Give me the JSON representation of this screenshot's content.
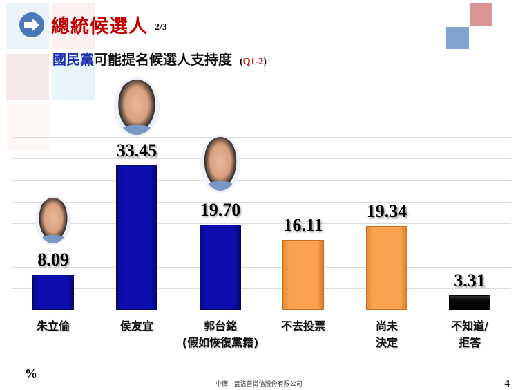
{
  "header": {
    "title": "總統候選人",
    "page_fraction": "2/3",
    "subtitle_party": "國民黨",
    "subtitle_rest": "可能提名候選人支持度",
    "question_open": "(",
    "question_code": "Q1-2",
    "question_close": ")"
  },
  "chart_data": {
    "type": "bar",
    "title": "國民黨可能提名候選人支持度 (Q1-2)",
    "xlabel": "",
    "ylabel": "%",
    "ylim": [
      0,
      40
    ],
    "grid": true,
    "gridline_step": 5,
    "legend": null,
    "categories": [
      "朱立倫",
      "侯友宜",
      "郭台銘 (假如恢復黨籍)",
      "不去投票",
      "尚未決定",
      "不知道/拒答"
    ],
    "values": [
      8.09,
      33.45,
      19.7,
      16.11,
      19.34,
      3.31
    ],
    "value_labels": [
      "8.09",
      "33.45",
      "19.70",
      "16.11",
      "19.34",
      "3.31"
    ],
    "bar_colors": [
      "#0d0db0",
      "#0d0db0",
      "#0d0db0",
      "#fba250",
      "#fba250",
      "#000000"
    ],
    "annotations": [
      "Candidate headshot photos above 朱立倫, 侯友宜, 郭台銘 bars"
    ]
  },
  "categories_display": [
    {
      "line1": "朱立倫",
      "line2": ""
    },
    {
      "line1": "侯友宜",
      "line2": ""
    },
    {
      "line1": "郭台銘",
      "line2": "(假如恢復黨籍)"
    },
    {
      "line1": "不去投票",
      "line2": ""
    },
    {
      "line1": "尚未",
      "line2": "決定"
    },
    {
      "line1": "不知道/",
      "line2": "拒答"
    }
  ],
  "photos": [
    {
      "name": "朱立倫"
    },
    {
      "name": "侯友宜"
    },
    {
      "name": "郭台銘"
    }
  ],
  "footer": {
    "unit": "%",
    "source": "中廣 · 蓋洛普徵信股份有限公司",
    "page_number": "4"
  },
  "colors": {
    "title_red": "#c00000",
    "party_blue": "#1f2fb0",
    "bar_blue": "#0d0db0",
    "bar_orange": "#fba250",
    "bar_black": "#000000",
    "deco_pink": "#d99494",
    "deco_blue": "#7fa4cf"
  }
}
